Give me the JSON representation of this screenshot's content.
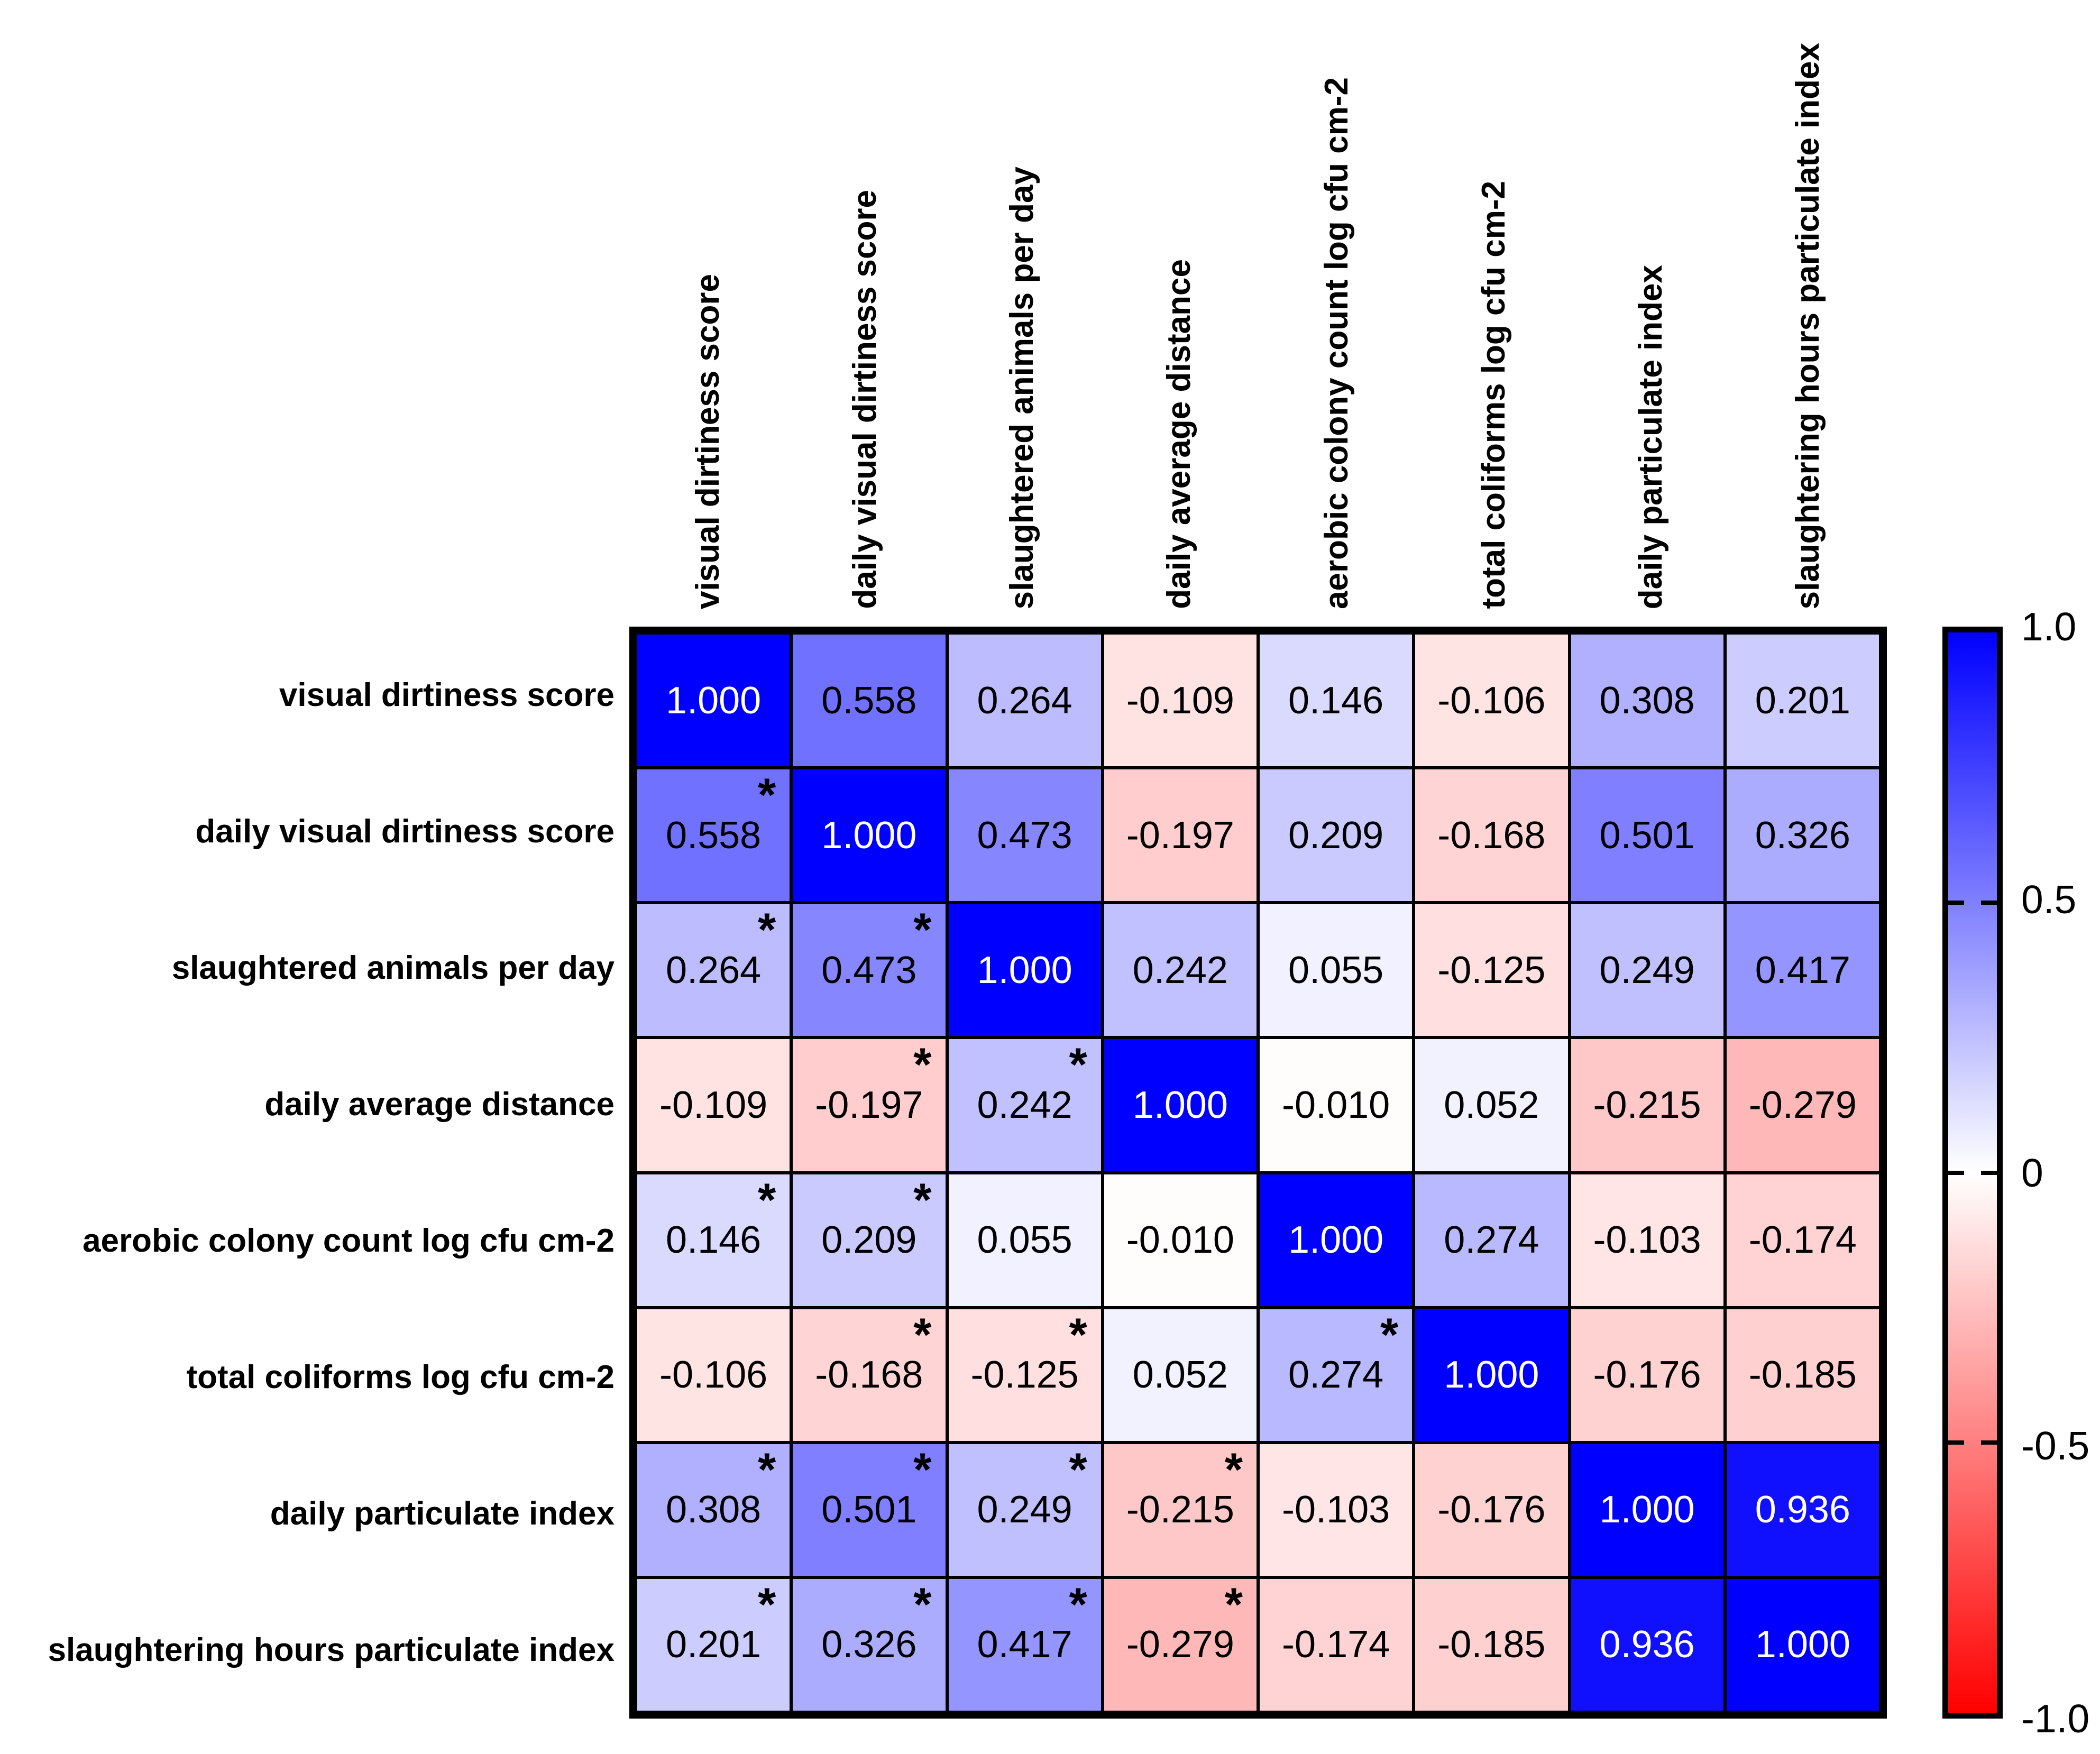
{
  "chart_data": {
    "type": "heatmap",
    "title": "",
    "xlabel": "",
    "ylabel": "",
    "grid": "black cell borders",
    "legend_position": "colorbar right",
    "variables": [
      "visual dirtiness score",
      "daily visual dirtiness score",
      "slaughtered animals per day",
      "daily average distance",
      "aerobic colony count log cfu cm-2",
      "total coliforms log cfu cm-2",
      "daily particulate index",
      "slaughtering hours particulate index"
    ],
    "matrix": [
      [
        "1.000",
        "0.558",
        "0.264",
        "-0.109",
        "0.146",
        "-0.106",
        "0.308",
        "0.201"
      ],
      [
        "0.558",
        "1.000",
        "0.473",
        "-0.197",
        "0.209",
        "-0.168",
        "0.501",
        "0.326"
      ],
      [
        "0.264",
        "0.473",
        "1.000",
        "0.242",
        "0.055",
        "-0.125",
        "0.249",
        "0.417"
      ],
      [
        "-0.109",
        "-0.197",
        "0.242",
        "1.000",
        "-0.010",
        "0.052",
        "-0.215",
        "-0.279"
      ],
      [
        "0.146",
        "0.209",
        "0.055",
        "-0.010",
        "1.000",
        "0.274",
        "-0.103",
        "-0.174"
      ],
      [
        "-0.106",
        "-0.168",
        "-0.125",
        "0.052",
        "0.274",
        "1.000",
        "-0.176",
        "-0.185"
      ],
      [
        "0.308",
        "0.501",
        "0.249",
        "-0.215",
        "-0.103",
        "-0.176",
        "1.000",
        "0.936"
      ],
      [
        "0.201",
        "0.326",
        "0.417",
        "-0.279",
        "-0.174",
        "-0.185",
        "0.936",
        "1.000"
      ]
    ],
    "significance": [
      [
        0,
        0,
        0,
        0,
        0,
        0,
        0,
        0
      ],
      [
        1,
        0,
        0,
        0,
        0,
        0,
        0,
        0
      ],
      [
        1,
        1,
        0,
        0,
        0,
        0,
        0,
        0
      ],
      [
        0,
        1,
        1,
        0,
        0,
        0,
        0,
        0
      ],
      [
        1,
        1,
        0,
        0,
        0,
        0,
        0,
        0
      ],
      [
        0,
        1,
        1,
        0,
        1,
        0,
        0,
        0
      ],
      [
        1,
        1,
        1,
        1,
        0,
        0,
        0,
        0
      ],
      [
        1,
        1,
        1,
        1,
        0,
        0,
        0,
        0
      ]
    ],
    "significance_marker": "*",
    "white_text_threshold": 0.9,
    "colorbar": {
      "min": -1,
      "max": 1,
      "tick_labels": [
        "1.0",
        "0.5",
        "0",
        "-0.5",
        "-1.0"
      ],
      "color_positive": "#0000FF",
      "color_zero": "#FFFFFF",
      "color_negative": "#FF0000"
    }
  }
}
